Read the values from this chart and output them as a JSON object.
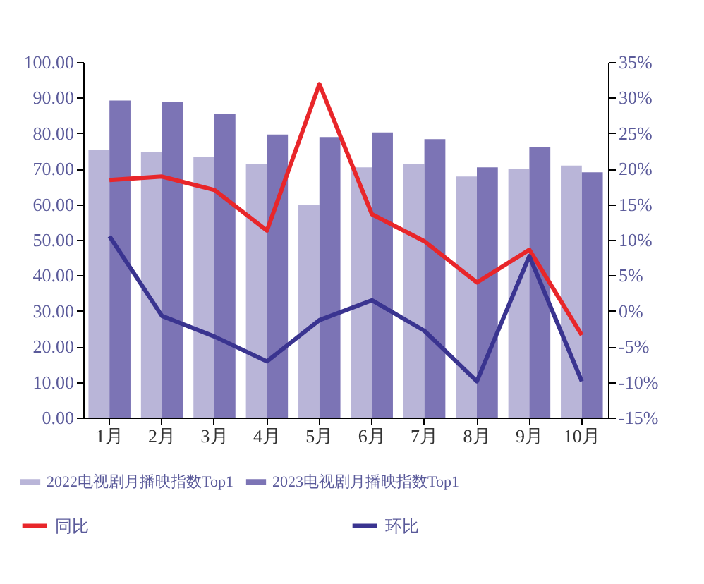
{
  "chart_data": {
    "type": "bar",
    "categories": [
      "1月",
      "2月",
      "3月",
      "4月",
      "5月",
      "6月",
      "7月",
      "8月",
      "9月",
      "10月"
    ],
    "series": [
      {
        "name": "2022电视剧月播映指数Top1",
        "color": "#b9b5d8",
        "values": [
          75.3,
          74.6,
          73.3,
          71.4,
          59.9,
          70.4,
          71.3,
          67.8,
          69.9,
          70.9
        ]
      },
      {
        "name": "2023电视剧月播映指数Top1",
        "color": "#7c74b5",
        "values": [
          89.2,
          88.8,
          85.5,
          79.6,
          78.9,
          80.2,
          78.3,
          70.4,
          76.2,
          69.0
        ]
      },
      {
        "name": "同比",
        "type": "line",
        "axis": "y2",
        "color": "#e8262a",
        "values": [
          18.4,
          18.9,
          17.0,
          11.3,
          31.9,
          13.6,
          9.8,
          4.0,
          8.6,
          -3.4
        ]
      },
      {
        "name": "环比",
        "type": "line",
        "axis": "y2",
        "color": "#3a3490",
        "values": [
          10.5,
          -0.7,
          -3.6,
          -7.1,
          -1.3,
          1.5,
          -2.8,
          -9.9,
          7.7,
          -9.9
        ]
      }
    ],
    "ylim": [
      0,
      100
    ],
    "yticks": [
      {
        "value": 0,
        "label": "0.00"
      },
      {
        "value": 10,
        "label": "10.00"
      },
      {
        "value": 20,
        "label": "20.00"
      },
      {
        "value": 30,
        "label": "30.00"
      },
      {
        "value": 40,
        "label": "40.00"
      },
      {
        "value": 50,
        "label": "50.00"
      },
      {
        "value": 60,
        "label": "60.00"
      },
      {
        "value": 70,
        "label": "70.00"
      },
      {
        "value": 80,
        "label": "80.00"
      },
      {
        "value": 90,
        "label": "90.00"
      },
      {
        "value": 100,
        "label": "100.00"
      }
    ],
    "y2lim": [
      -15,
      35
    ],
    "y2ticks": [
      {
        "value": -15,
        "label": "-15%"
      },
      {
        "value": -10,
        "label": "-10%"
      },
      {
        "value": -5,
        "label": "-5%"
      },
      {
        "value": 0,
        "label": "0%"
      },
      {
        "value": 5,
        "label": "5%"
      },
      {
        "value": 10,
        "label": "10%"
      },
      {
        "value": 15,
        "label": "15%"
      },
      {
        "value": 20,
        "label": "20%"
      },
      {
        "value": 25,
        "label": "25%"
      },
      {
        "value": 30,
        "label": "30%"
      },
      {
        "value": 35,
        "label": "35%"
      }
    ],
    "grid": false,
    "legend": "bottom",
    "marker": "none"
  }
}
